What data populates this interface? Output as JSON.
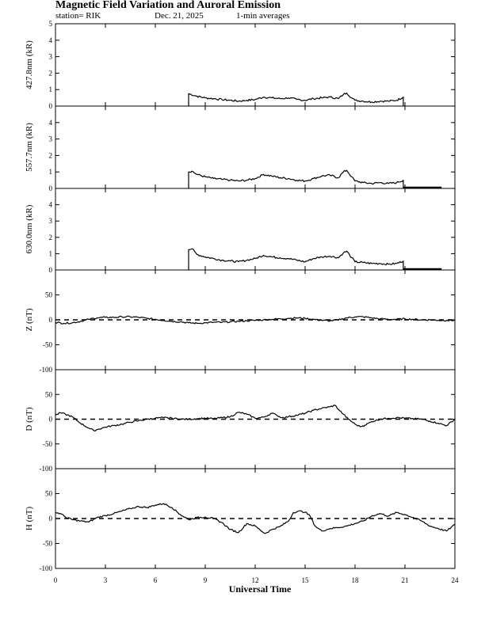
{
  "figure": {
    "title": "Magnetic Field Variation and Auroral Emission",
    "station": "station= RIK",
    "date": "Dec. 21, 2025",
    "averaging": "1-min averages",
    "xlabel": "Universal Time"
  },
  "chart_data": {
    "type": "line",
    "title": "Magnetic Field Variation and Auroral Emission",
    "xlabel": "Universal Time",
    "xlim": [
      0,
      24
    ],
    "xticks": [
      0,
      3,
      6,
      9,
      12,
      15,
      18,
      21,
      24
    ],
    "panels": [
      {
        "name": "427.8nm",
        "ylabel": "427.8nm (kR)",
        "ylim": [
          0,
          5
        ],
        "yticks": [
          0,
          1,
          2,
          3,
          4,
          5
        ],
        "dashed_zero": false,
        "x": [
          8.0,
          8.0,
          8.5,
          9.0,
          9.5,
          10.0,
          10.5,
          11.0,
          11.5,
          12.0,
          12.5,
          13.0,
          13.5,
          14.0,
          14.5,
          15.0,
          15.5,
          16.0,
          16.5,
          17.0,
          17.3,
          17.5,
          17.8,
          18.0,
          18.5,
          19.0,
          19.5,
          20.0,
          20.5,
          20.9,
          20.9
        ],
        "y": [
          0.0,
          0.75,
          0.6,
          0.5,
          0.45,
          0.4,
          0.35,
          0.3,
          0.35,
          0.4,
          0.55,
          0.5,
          0.45,
          0.5,
          0.4,
          0.35,
          0.45,
          0.5,
          0.55,
          0.45,
          0.7,
          0.8,
          0.5,
          0.35,
          0.3,
          0.25,
          0.3,
          0.3,
          0.35,
          0.55,
          0.0
        ],
        "flat": null
      },
      {
        "name": "557.7nm",
        "ylabel": "557.7nm (kR)",
        "ylim": [
          0,
          5
        ],
        "yticks": [
          0,
          1,
          2,
          3,
          4
        ],
        "dashed_zero": false,
        "x": [
          8.0,
          8.0,
          8.2,
          8.5,
          9.0,
          9.5,
          10.0,
          10.5,
          11.0,
          11.5,
          12.0,
          12.5,
          13.0,
          13.5,
          14.0,
          14.5,
          15.0,
          15.5,
          16.0,
          16.5,
          17.0,
          17.3,
          17.5,
          17.8,
          18.0,
          18.5,
          19.0,
          19.5,
          20.0,
          20.5,
          20.9,
          20.9
        ],
        "y": [
          0.0,
          1.0,
          1.05,
          0.85,
          0.7,
          0.6,
          0.55,
          0.5,
          0.45,
          0.5,
          0.6,
          0.85,
          0.75,
          0.65,
          0.6,
          0.5,
          0.45,
          0.6,
          0.75,
          0.8,
          0.65,
          1.0,
          1.1,
          0.7,
          0.45,
          0.35,
          0.3,
          0.35,
          0.3,
          0.35,
          0.5,
          0.0
        ],
        "flat": [
          20.9,
          23.2,
          0.05
        ]
      },
      {
        "name": "630.0nm",
        "ylabel": "630.0nm (kR)",
        "ylim": [
          0,
          5
        ],
        "yticks": [
          0,
          1,
          2,
          3,
          4
        ],
        "dashed_zero": false,
        "x": [
          8.0,
          8.0,
          8.2,
          8.5,
          9.0,
          9.5,
          10.0,
          10.5,
          11.0,
          11.5,
          12.0,
          12.5,
          13.0,
          13.5,
          14.0,
          14.5,
          15.0,
          15.5,
          16.0,
          16.5,
          17.0,
          17.3,
          17.5,
          17.8,
          18.0,
          18.5,
          19.0,
          19.5,
          20.0,
          20.5,
          20.9,
          20.9
        ],
        "y": [
          0.0,
          1.25,
          1.3,
          0.95,
          0.8,
          0.7,
          0.6,
          0.55,
          0.5,
          0.6,
          0.7,
          0.9,
          0.8,
          0.75,
          0.7,
          0.6,
          0.5,
          0.7,
          0.8,
          0.85,
          0.75,
          1.05,
          1.15,
          0.75,
          0.5,
          0.45,
          0.4,
          0.4,
          0.35,
          0.4,
          0.55,
          0.0
        ],
        "flat": [
          20.9,
          23.2,
          0.05
        ]
      },
      {
        "name": "Z",
        "ylabel": "Z (nT)",
        "ylim": [
          -100,
          100
        ],
        "yticks": [
          -100,
          -50,
          0,
          50
        ],
        "dashed_zero": true,
        "x": [
          0,
          0.5,
          1,
          1.5,
          2,
          2.5,
          3,
          3.5,
          4,
          4.5,
          5,
          5.5,
          6,
          6.5,
          7,
          7.5,
          8,
          8.5,
          9,
          9.5,
          10,
          10.5,
          11,
          11.5,
          12,
          12.5,
          13,
          13.5,
          14,
          14.5,
          15,
          15.5,
          16,
          16.5,
          17,
          17.5,
          18,
          18.5,
          19,
          19.5,
          20,
          20.5,
          21,
          21.5,
          22,
          22.5,
          23,
          23.5,
          24
        ],
        "y": [
          -5,
          -7,
          -6,
          -3,
          1,
          4,
          5,
          5,
          6,
          6,
          5,
          3,
          1,
          -1,
          -3,
          -4,
          -6,
          -7,
          -6,
          -5,
          -5,
          -4,
          -3,
          -2,
          -1,
          0,
          1,
          2,
          3,
          4,
          3,
          1,
          -1,
          -2,
          0,
          4,
          6,
          6,
          4,
          2,
          1,
          1,
          2,
          1,
          0,
          0,
          -1,
          -1,
          -1
        ],
        "flat": null
      },
      {
        "name": "D",
        "ylabel": "D (nT)",
        "ylim": [
          -100,
          100
        ],
        "yticks": [
          -100,
          -50,
          0,
          50
        ],
        "dashed_zero": true,
        "x": [
          0,
          0.3,
          0.6,
          1,
          1.5,
          2,
          2.3,
          2.6,
          3,
          3.5,
          4,
          4.5,
          5,
          5.5,
          6,
          6.5,
          7,
          7.5,
          8,
          8.5,
          9,
          9.5,
          10,
          10.5,
          11,
          11.5,
          12,
          12.5,
          13,
          13.3,
          13.6,
          14,
          14.5,
          15,
          15.5,
          16,
          16.5,
          16.8,
          17,
          17.3,
          17.6,
          18,
          18.3,
          18.6,
          19,
          19.5,
          20,
          20.5,
          21,
          21.5,
          22,
          22.5,
          23,
          23.5,
          24
        ],
        "y": [
          8,
          13,
          10,
          5,
          -8,
          -18,
          -23,
          -20,
          -16,
          -13,
          -10,
          -6,
          -3,
          0,
          2,
          3,
          2,
          0,
          0,
          1,
          2,
          1,
          3,
          5,
          14,
          10,
          2,
          4,
          12,
          8,
          3,
          5,
          8,
          12,
          18,
          22,
          25,
          28,
          20,
          10,
          0,
          -10,
          -15,
          -12,
          -5,
          0,
          2,
          3,
          2,
          1,
          0,
          -4,
          -8,
          -13,
          0
        ],
        "flat": null
      },
      {
        "name": "H",
        "ylabel": "H (nT)",
        "ylim": [
          -100,
          100
        ],
        "yticks": [
          -100,
          -50,
          0,
          50
        ],
        "dashed_zero": true,
        "x": [
          0,
          0.3,
          0.6,
          1,
          1.5,
          2,
          2.5,
          3,
          3.5,
          4,
          4.5,
          5,
          5.5,
          6,
          6.5,
          7,
          7.5,
          8,
          8.5,
          9,
          9.5,
          10,
          10.5,
          11,
          11.5,
          12,
          12.3,
          12.6,
          13,
          13.5,
          14,
          14.3,
          14.6,
          15,
          15.3,
          15.6,
          16,
          16.5,
          17,
          17.5,
          18,
          18.5,
          19,
          19.5,
          20,
          20.5,
          21,
          21.5,
          22,
          22.5,
          23,
          23.5,
          24
        ],
        "y": [
          12,
          10,
          3,
          -2,
          -5,
          -7,
          2,
          6,
          10,
          15,
          20,
          24,
          22,
          27,
          30,
          22,
          8,
          -2,
          2,
          3,
          0,
          -8,
          -22,
          -28,
          -10,
          -15,
          -23,
          -30,
          -22,
          -16,
          -5,
          12,
          15,
          13,
          5,
          -15,
          -25,
          -20,
          -18,
          -15,
          -10,
          -5,
          5,
          10,
          5,
          12,
          8,
          2,
          -5,
          -15,
          -20,
          -25,
          -12
        ],
        "flat": null
      }
    ]
  }
}
